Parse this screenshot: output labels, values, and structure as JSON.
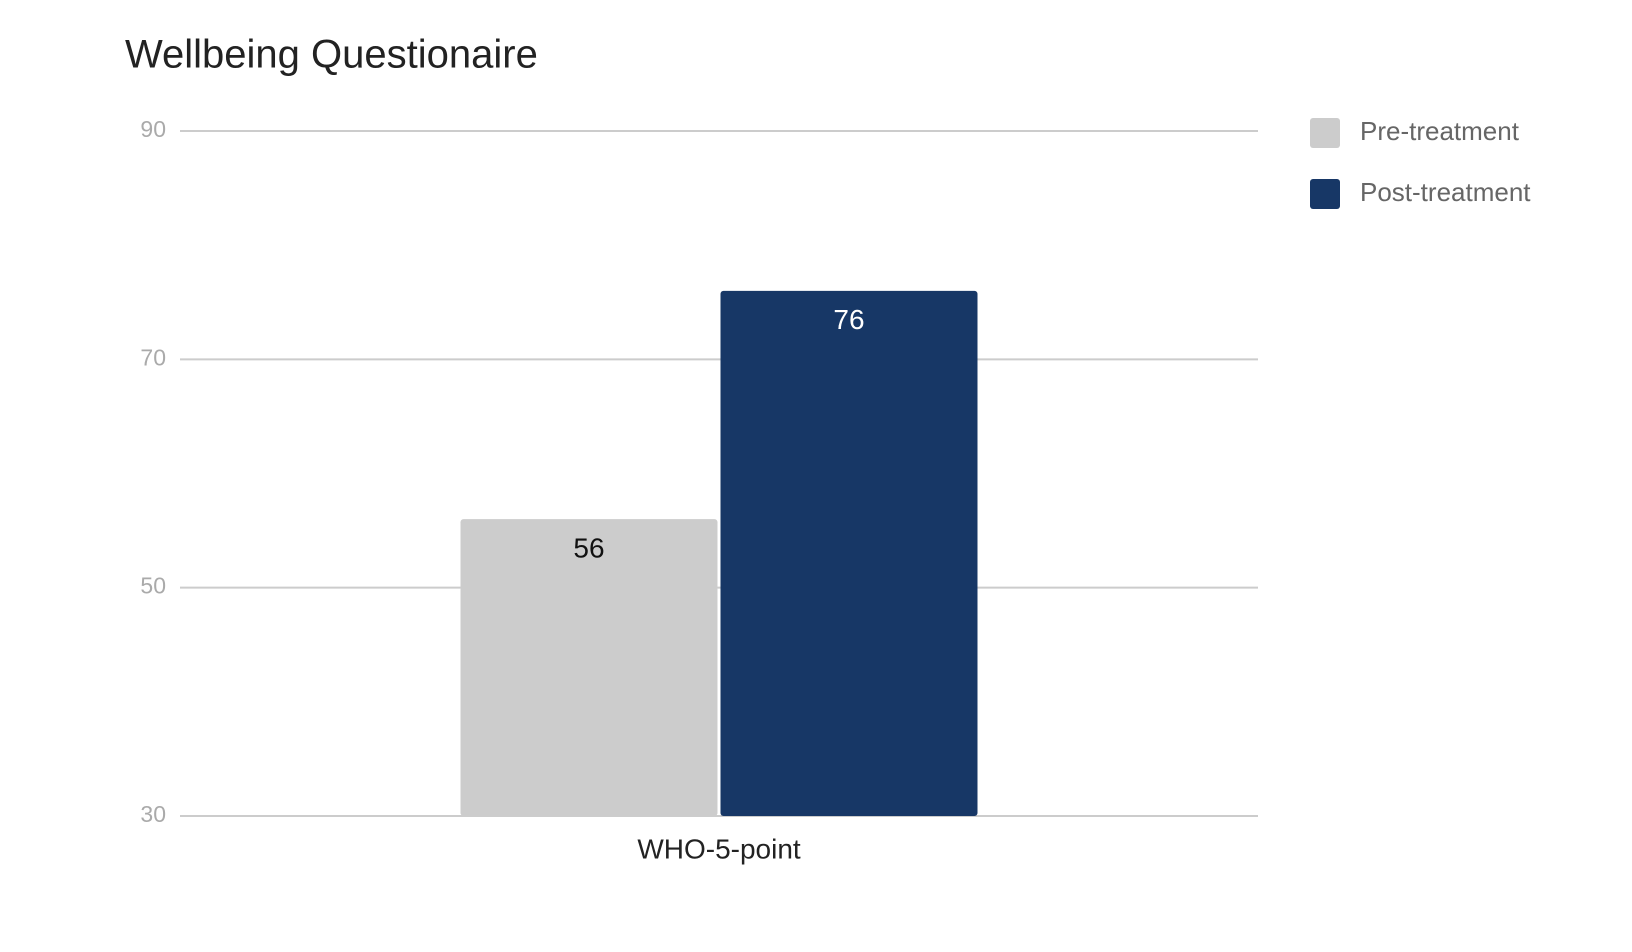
{
  "chart_data": {
    "type": "bar",
    "title": "Wellbeing Questionaire",
    "categories": [
      "WHO-5-point"
    ],
    "series": [
      {
        "name": "Pre-treatment",
        "color": "#cccccc",
        "values": [
          56
        ]
      },
      {
        "name": "Post-treatment",
        "color": "#173766",
        "values": [
          76
        ]
      }
    ],
    "ylim": [
      30,
      90
    ],
    "yticks": [
      30,
      50,
      70,
      90
    ],
    "grid": true,
    "legend": "right"
  }
}
